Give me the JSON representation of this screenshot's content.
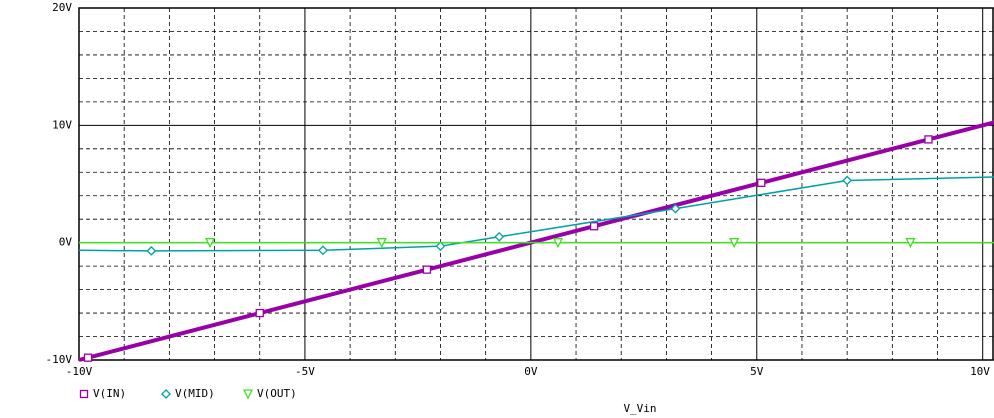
{
  "chart_data": {
    "type": "line",
    "x_label": "V_Vin",
    "xlim": [
      -10,
      10.25
    ],
    "xticks": [
      {
        "value": -10,
        "label": "-10V"
      },
      {
        "value": -5,
        "label": "-5V"
      },
      {
        "value": 0,
        "label": "0V"
      },
      {
        "value": 5,
        "label": "5V"
      },
      {
        "value": 10,
        "label": "10V"
      }
    ],
    "ylim": [
      -10,
      20
    ],
    "yticks": [
      {
        "value": -10,
        "label": "-10V"
      },
      {
        "value": 0,
        "label": "0V"
      },
      {
        "value": 10,
        "label": "10V"
      },
      {
        "value": 20,
        "label": "20V"
      }
    ],
    "grid": true,
    "series": [
      {
        "name": "V(IN)",
        "color": "#9a00a8",
        "marker": "square",
        "width": 4,
        "x": [
          -10,
          -9.8,
          -6,
          -2.3,
          1.4,
          5.1,
          8.8,
          10.25
        ],
        "values": [
          -10,
          -9.8,
          -6,
          -2.3,
          1.4,
          5.1,
          8.8,
          10.25
        ]
      },
      {
        "name": "V(MID)",
        "color": "#00a0a8",
        "marker": "diamond",
        "width": 1.5,
        "x": [
          -10,
          -8.4,
          -4.6,
          -2,
          -0.7,
          3.2,
          7.0,
          10.25
        ],
        "values": [
          -0.65,
          -0.7,
          -0.65,
          -0.3,
          0.5,
          2.9,
          5.3,
          5.6
        ]
      },
      {
        "name": "V(OUT)",
        "color": "#40e020",
        "marker": "triangle",
        "width": 1.5,
        "x": [
          -10,
          -7.1,
          -3.3,
          0.6,
          4.5,
          8.4,
          10.25
        ],
        "values": [
          0,
          0,
          0,
          0,
          0,
          0,
          0
        ]
      }
    ]
  }
}
